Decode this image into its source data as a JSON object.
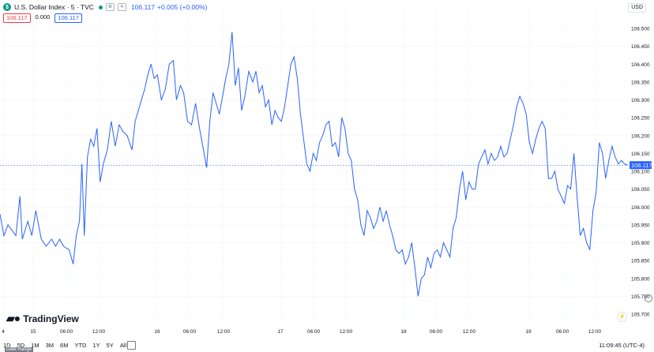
{
  "header": {
    "symbol_badge": "$",
    "title": "U.S. Dollar Index · 5 · TVC",
    "last_price": "106.117",
    "change": "+0.005 (+0.00%)"
  },
  "price_boxes": {
    "bid": "106.117",
    "spread": "0.000",
    "ask": "106.117"
  },
  "currency": "USD",
  "brand": {
    "name": "TradingView"
  },
  "bottom": {
    "ranges": [
      "1D",
      "5D",
      "1M",
      "3M",
      "6M",
      "YTD",
      "1Y",
      "5Y",
      "All"
    ],
    "time": "11:09:45 (UTC-4)",
    "tooltip": "Date Range"
  },
  "colors": {
    "line": "#2962ff",
    "axis_text": "#131722",
    "grid": "#f0f3fa",
    "price_tag": "#2962ff"
  },
  "chart_data": {
    "type": "line",
    "series": [
      {
        "name": "U.S. Dollar Index",
        "last": 106.117
      }
    ],
    "y_ticks": [
      "106.500",
      "106.450",
      "106.400",
      "106.350",
      "106.300",
      "106.250",
      "106.200",
      "106.150",
      "106.100",
      "106.050",
      "106.000",
      "105.950",
      "105.900",
      "105.850",
      "105.800",
      "105.750",
      "105.700"
    ],
    "x_ticks": [
      "4",
      "15",
      "06:00",
      "12:00",
      "16",
      "06:00",
      "12:00",
      "17",
      "06:00",
      "12:00",
      "18",
      "06:00",
      "12:00",
      "19",
      "06:00",
      "12:00"
    ],
    "ylim": [
      105.7,
      106.5
    ],
    "current_price_label": "106.117",
    "key_points": [
      [
        0,
        105.98
      ],
      [
        5,
        105.92
      ],
      [
        10,
        105.95
      ],
      [
        20,
        105.92
      ],
      [
        25,
        106.03
      ],
      [
        28,
        105.91
      ],
      [
        35,
        105.96
      ],
      [
        40,
        105.92
      ],
      [
        45,
        105.99
      ],
      [
        52,
        105.91
      ],
      [
        58,
        105.89
      ],
      [
        65,
        105.91
      ],
      [
        70,
        105.89
      ],
      [
        75,
        105.91
      ],
      [
        80,
        105.89
      ],
      [
        87,
        105.88
      ],
      [
        92,
        105.84
      ],
      [
        96,
        105.92
      ],
      [
        100,
        105.96
      ],
      [
        103,
        106.12
      ],
      [
        106,
        105.92
      ],
      [
        110,
        106.14
      ],
      [
        114,
        106.19
      ],
      [
        118,
        106.17
      ],
      [
        122,
        106.22
      ],
      [
        126,
        106.07
      ],
      [
        130,
        106.12
      ],
      [
        135,
        106.16
      ],
      [
        140,
        106.24
      ],
      [
        145,
        106.17
      ],
      [
        150,
        106.23
      ],
      [
        155,
        106.21
      ],
      [
        160,
        106.2
      ],
      [
        166,
        106.16
      ],
      [
        170,
        106.24
      ],
      [
        174,
        106.27
      ],
      [
        178,
        106.3
      ],
      [
        182,
        106.33
      ],
      [
        186,
        106.37
      ],
      [
        190,
        106.4
      ],
      [
        194,
        106.36
      ],
      [
        198,
        106.37
      ],
      [
        203,
        106.3
      ],
      [
        208,
        106.33
      ],
      [
        213,
        106.4
      ],
      [
        218,
        106.41
      ],
      [
        222,
        106.3
      ],
      [
        227,
        106.34
      ],
      [
        231,
        106.32
      ],
      [
        236,
        106.24
      ],
      [
        241,
        106.23
      ],
      [
        246,
        106.29
      ],
      [
        251,
        106.22
      ],
      [
        256,
        106.16
      ],
      [
        260,
        106.11
      ],
      [
        264,
        106.24
      ],
      [
        268,
        106.32
      ],
      [
        272,
        106.29
      ],
      [
        276,
        106.26
      ],
      [
        280,
        106.31
      ],
      [
        284,
        106.36
      ],
      [
        288,
        106.4
      ],
      [
        292,
        106.49
      ],
      [
        296,
        106.34
      ],
      [
        300,
        106.39
      ],
      [
        304,
        106.27
      ],
      [
        308,
        106.31
      ],
      [
        313,
        106.38
      ],
      [
        318,
        106.35
      ],
      [
        322,
        106.38
      ],
      [
        326,
        106.32
      ],
      [
        330,
        106.34
      ],
      [
        334,
        106.28
      ],
      [
        338,
        106.3
      ],
      [
        342,
        106.23
      ],
      [
        346,
        106.27
      ],
      [
        350,
        106.25
      ],
      [
        354,
        106.24
      ],
      [
        358,
        106.28
      ],
      [
        362,
        106.34
      ],
      [
        366,
        106.4
      ],
      [
        370,
        106.42
      ],
      [
        374,
        106.36
      ],
      [
        378,
        106.26
      ],
      [
        382,
        106.19
      ],
      [
        386,
        106.12
      ],
      [
        390,
        106.1
      ],
      [
        394,
        106.15
      ],
      [
        398,
        106.13
      ],
      [
        402,
        106.18
      ],
      [
        406,
        106.2
      ],
      [
        410,
        106.23
      ],
      [
        414,
        106.24
      ],
      [
        418,
        106.17
      ],
      [
        422,
        106.18
      ],
      [
        426,
        106.14
      ],
      [
        430,
        106.25
      ],
      [
        434,
        106.22
      ],
      [
        438,
        106.15
      ],
      [
        442,
        106.13
      ],
      [
        446,
        106.05
      ],
      [
        450,
        106.02
      ],
      [
        454,
        105.95
      ],
      [
        458,
        105.92
      ],
      [
        462,
        105.99
      ],
      [
        466,
        105.97
      ],
      [
        470,
        105.94
      ],
      [
        474,
        105.96
      ],
      [
        478,
        106.0
      ],
      [
        482,
        105.96
      ],
      [
        486,
        105.99
      ],
      [
        490,
        105.95
      ],
      [
        494,
        105.92
      ],
      [
        498,
        105.88
      ],
      [
        502,
        105.87
      ],
      [
        506,
        105.88
      ],
      [
        510,
        105.84
      ],
      [
        514,
        105.86
      ],
      [
        518,
        105.9
      ],
      [
        522,
        105.83
      ],
      [
        526,
        105.75
      ],
      [
        530,
        105.8
      ],
      [
        534,
        105.81
      ],
      [
        538,
        105.86
      ],
      [
        542,
        105.83
      ],
      [
        546,
        105.87
      ],
      [
        550,
        105.88
      ],
      [
        554,
        105.86
      ],
      [
        558,
        105.9
      ],
      [
        562,
        105.88
      ],
      [
        566,
        105.86
      ],
      [
        570,
        105.94
      ],
      [
        574,
        105.97
      ],
      [
        578,
        106.05
      ],
      [
        582,
        106.1
      ],
      [
        586,
        106.02
      ],
      [
        590,
        106.07
      ],
      [
        594,
        106.05
      ],
      [
        598,
        106.05
      ],
      [
        602,
        106.12
      ],
      [
        606,
        106.14
      ],
      [
        610,
        106.16
      ],
      [
        614,
        106.12
      ],
      [
        618,
        106.15
      ],
      [
        622,
        106.13
      ],
      [
        626,
        106.14
      ],
      [
        630,
        106.17
      ],
      [
        634,
        106.14
      ],
      [
        638,
        106.15
      ],
      [
        642,
        106.19
      ],
      [
        646,
        106.23
      ],
      [
        650,
        106.28
      ],
      [
        654,
        106.31
      ],
      [
        658,
        106.29
      ],
      [
        662,
        106.26
      ],
      [
        666,
        106.18
      ],
      [
        670,
        106.15
      ],
      [
        674,
        106.19
      ],
      [
        678,
        106.22
      ],
      [
        682,
        106.24
      ],
      [
        686,
        106.22
      ],
      [
        690,
        106.08
      ],
      [
        694,
        106.08
      ],
      [
        698,
        106.1
      ],
      [
        702,
        106.05
      ],
      [
        706,
        106.03
      ],
      [
        710,
        106.01
      ],
      [
        714,
        106.06
      ],
      [
        718,
        106.05
      ],
      [
        722,
        106.15
      ],
      [
        726,
        106.03
      ],
      [
        730,
        105.92
      ],
      [
        734,
        105.94
      ],
      [
        738,
        105.9
      ],
      [
        742,
        105.88
      ],
      [
        746,
        105.99
      ],
      [
        750,
        106.04
      ],
      [
        754,
        106.18
      ],
      [
        758,
        106.15
      ],
      [
        762,
        106.08
      ],
      [
        766,
        106.13
      ],
      [
        770,
        106.17
      ],
      [
        774,
        106.14
      ],
      [
        778,
        106.12
      ],
      [
        782,
        106.13
      ],
      [
        786,
        106.12
      ],
      [
        790,
        106.117
      ]
    ]
  }
}
